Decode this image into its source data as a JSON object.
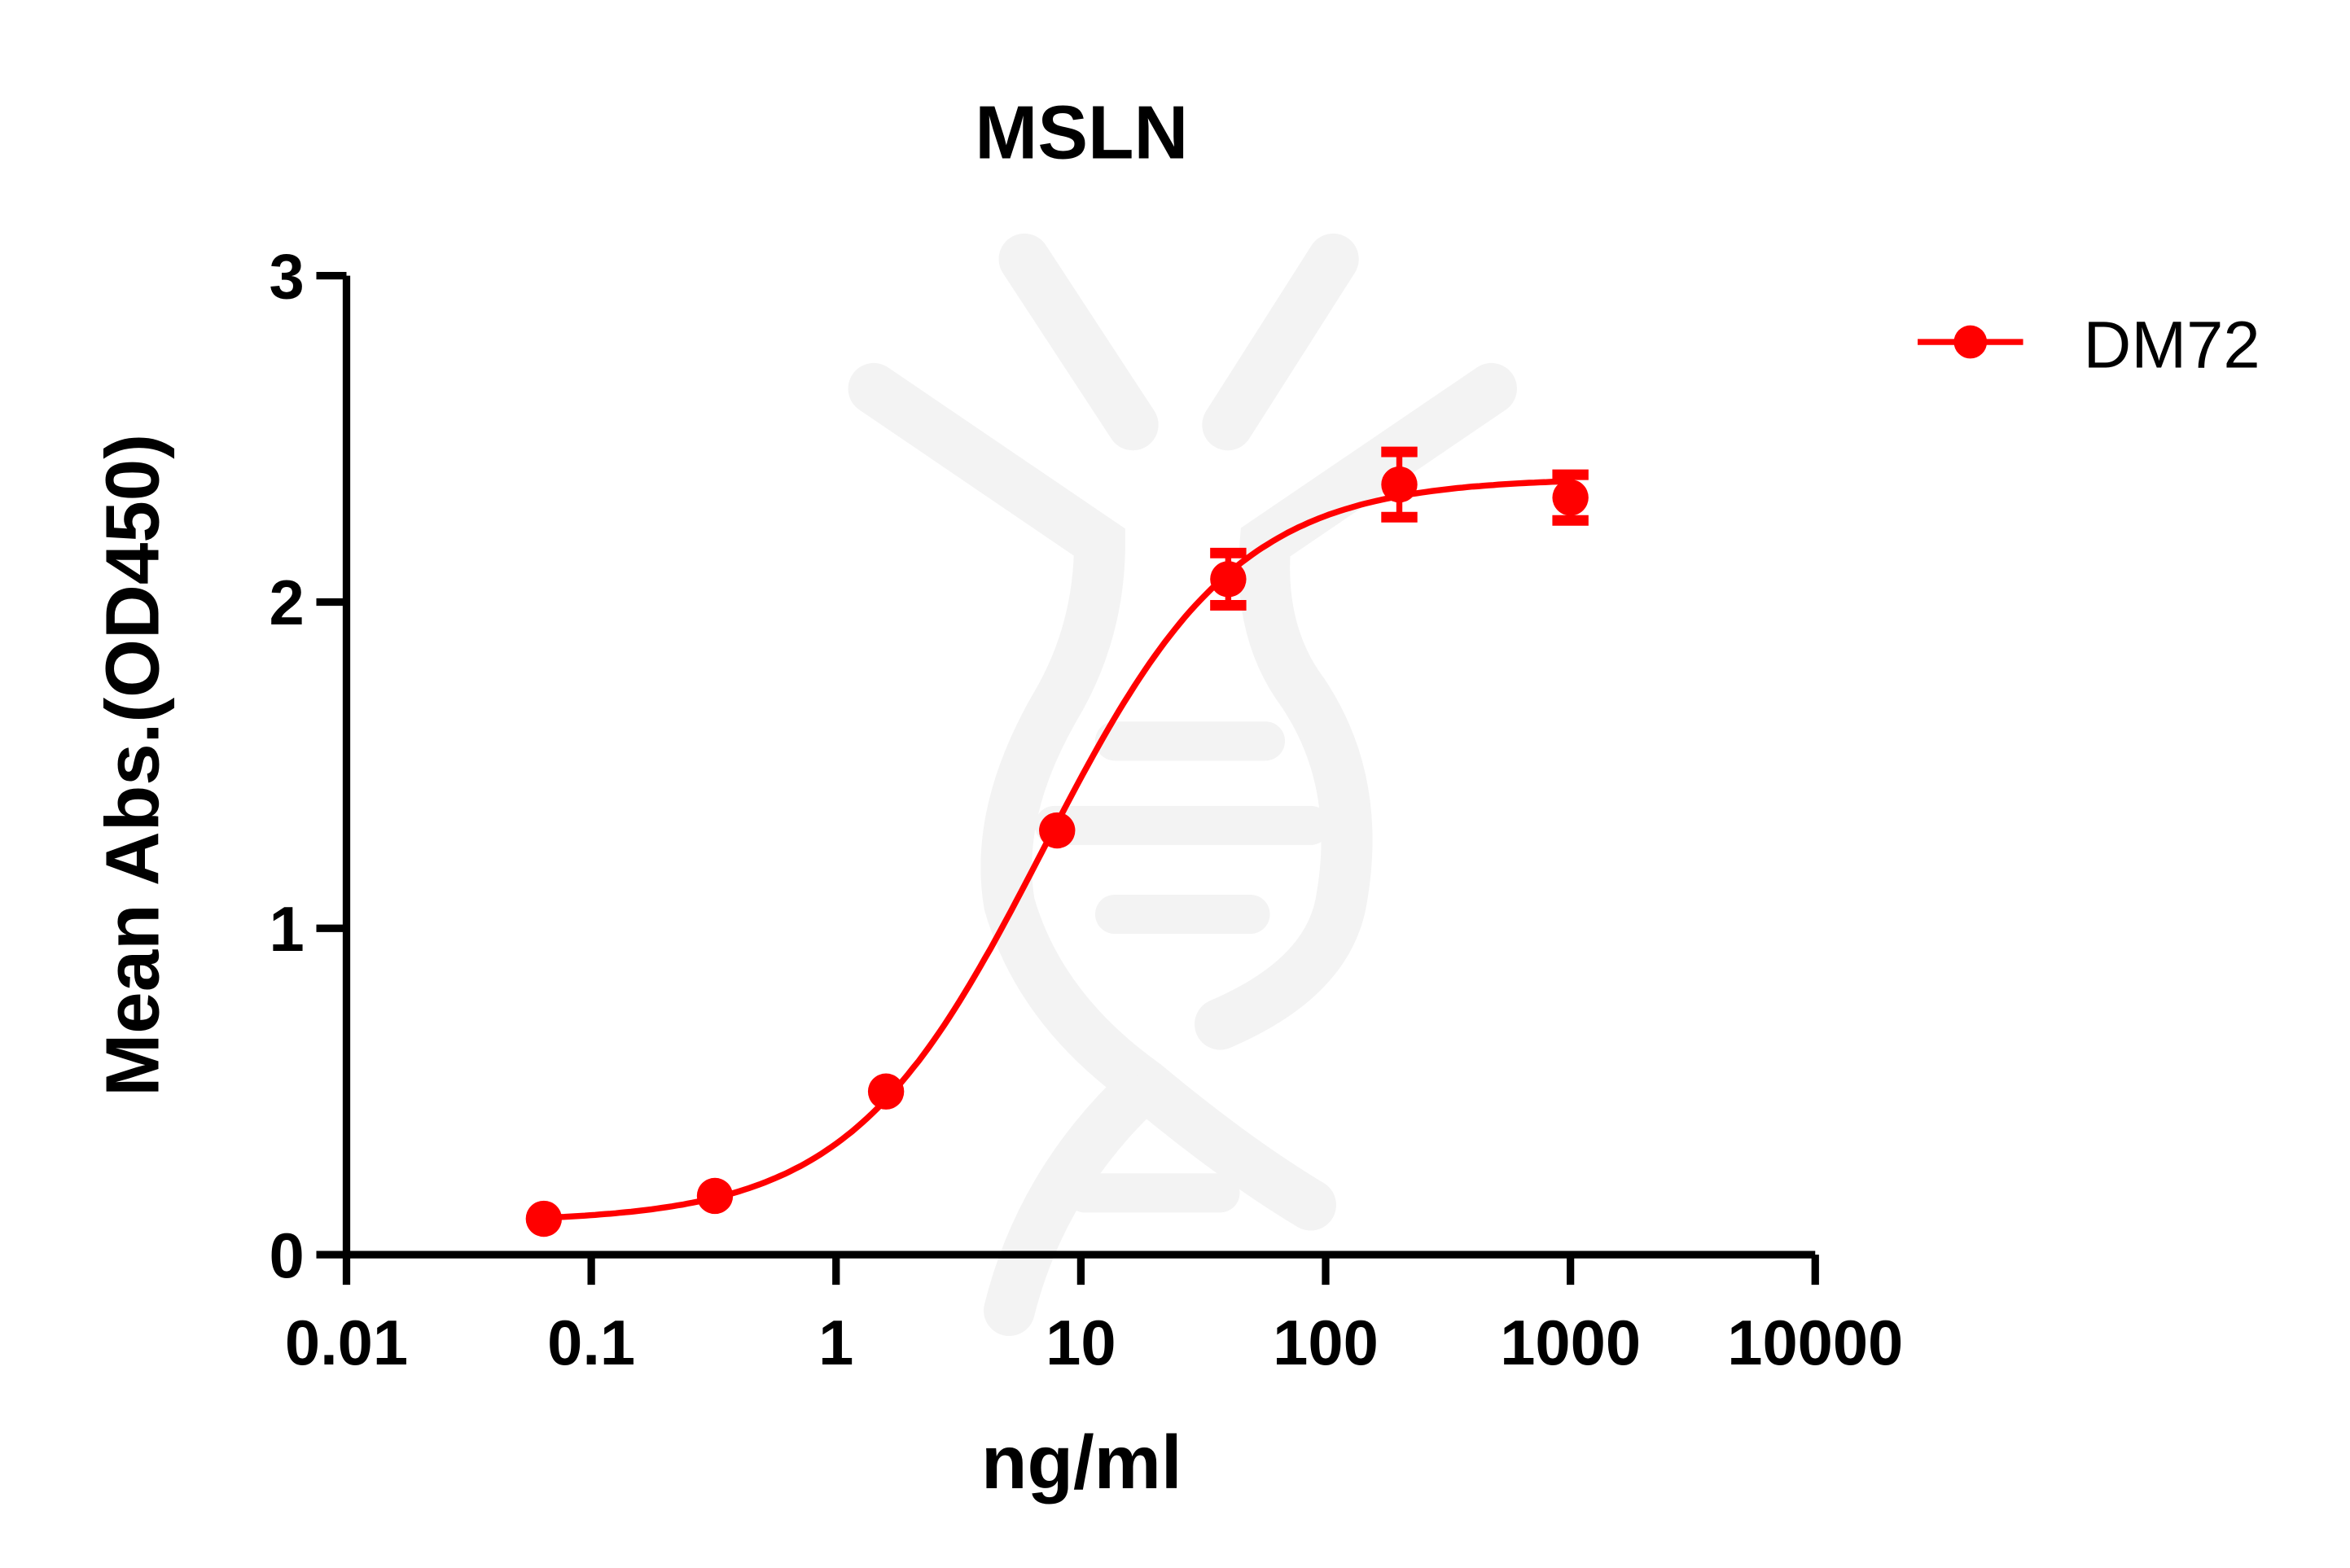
{
  "chart_data": {
    "type": "scatter",
    "title": "MSLN",
    "xlabel": "ng/ml",
    "ylabel": "Mean Abs.(OD450)",
    "x_scale": "log",
    "xlim": [
      0.01,
      10000
    ],
    "ylim": [
      0,
      3
    ],
    "x_ticks": [
      "0.01",
      "0.1",
      "1",
      "10",
      "100",
      "1000",
      "10000"
    ],
    "y_ticks": [
      "0",
      "1",
      "2",
      "3"
    ],
    "grid": false,
    "legend_position": "top-right",
    "series": [
      {
        "name": "DM72",
        "color": "#ff0000",
        "x": [
          0.064,
          0.32,
          1.6,
          8,
          40,
          200,
          1000
        ],
        "y": [
          0.11,
          0.18,
          0.5,
          1.3,
          2.07,
          2.36,
          2.32
        ],
        "error": [
          0,
          0,
          0,
          0,
          0.08,
          0.1,
          0.07
        ],
        "fit": "sigmoidal"
      }
    ]
  }
}
